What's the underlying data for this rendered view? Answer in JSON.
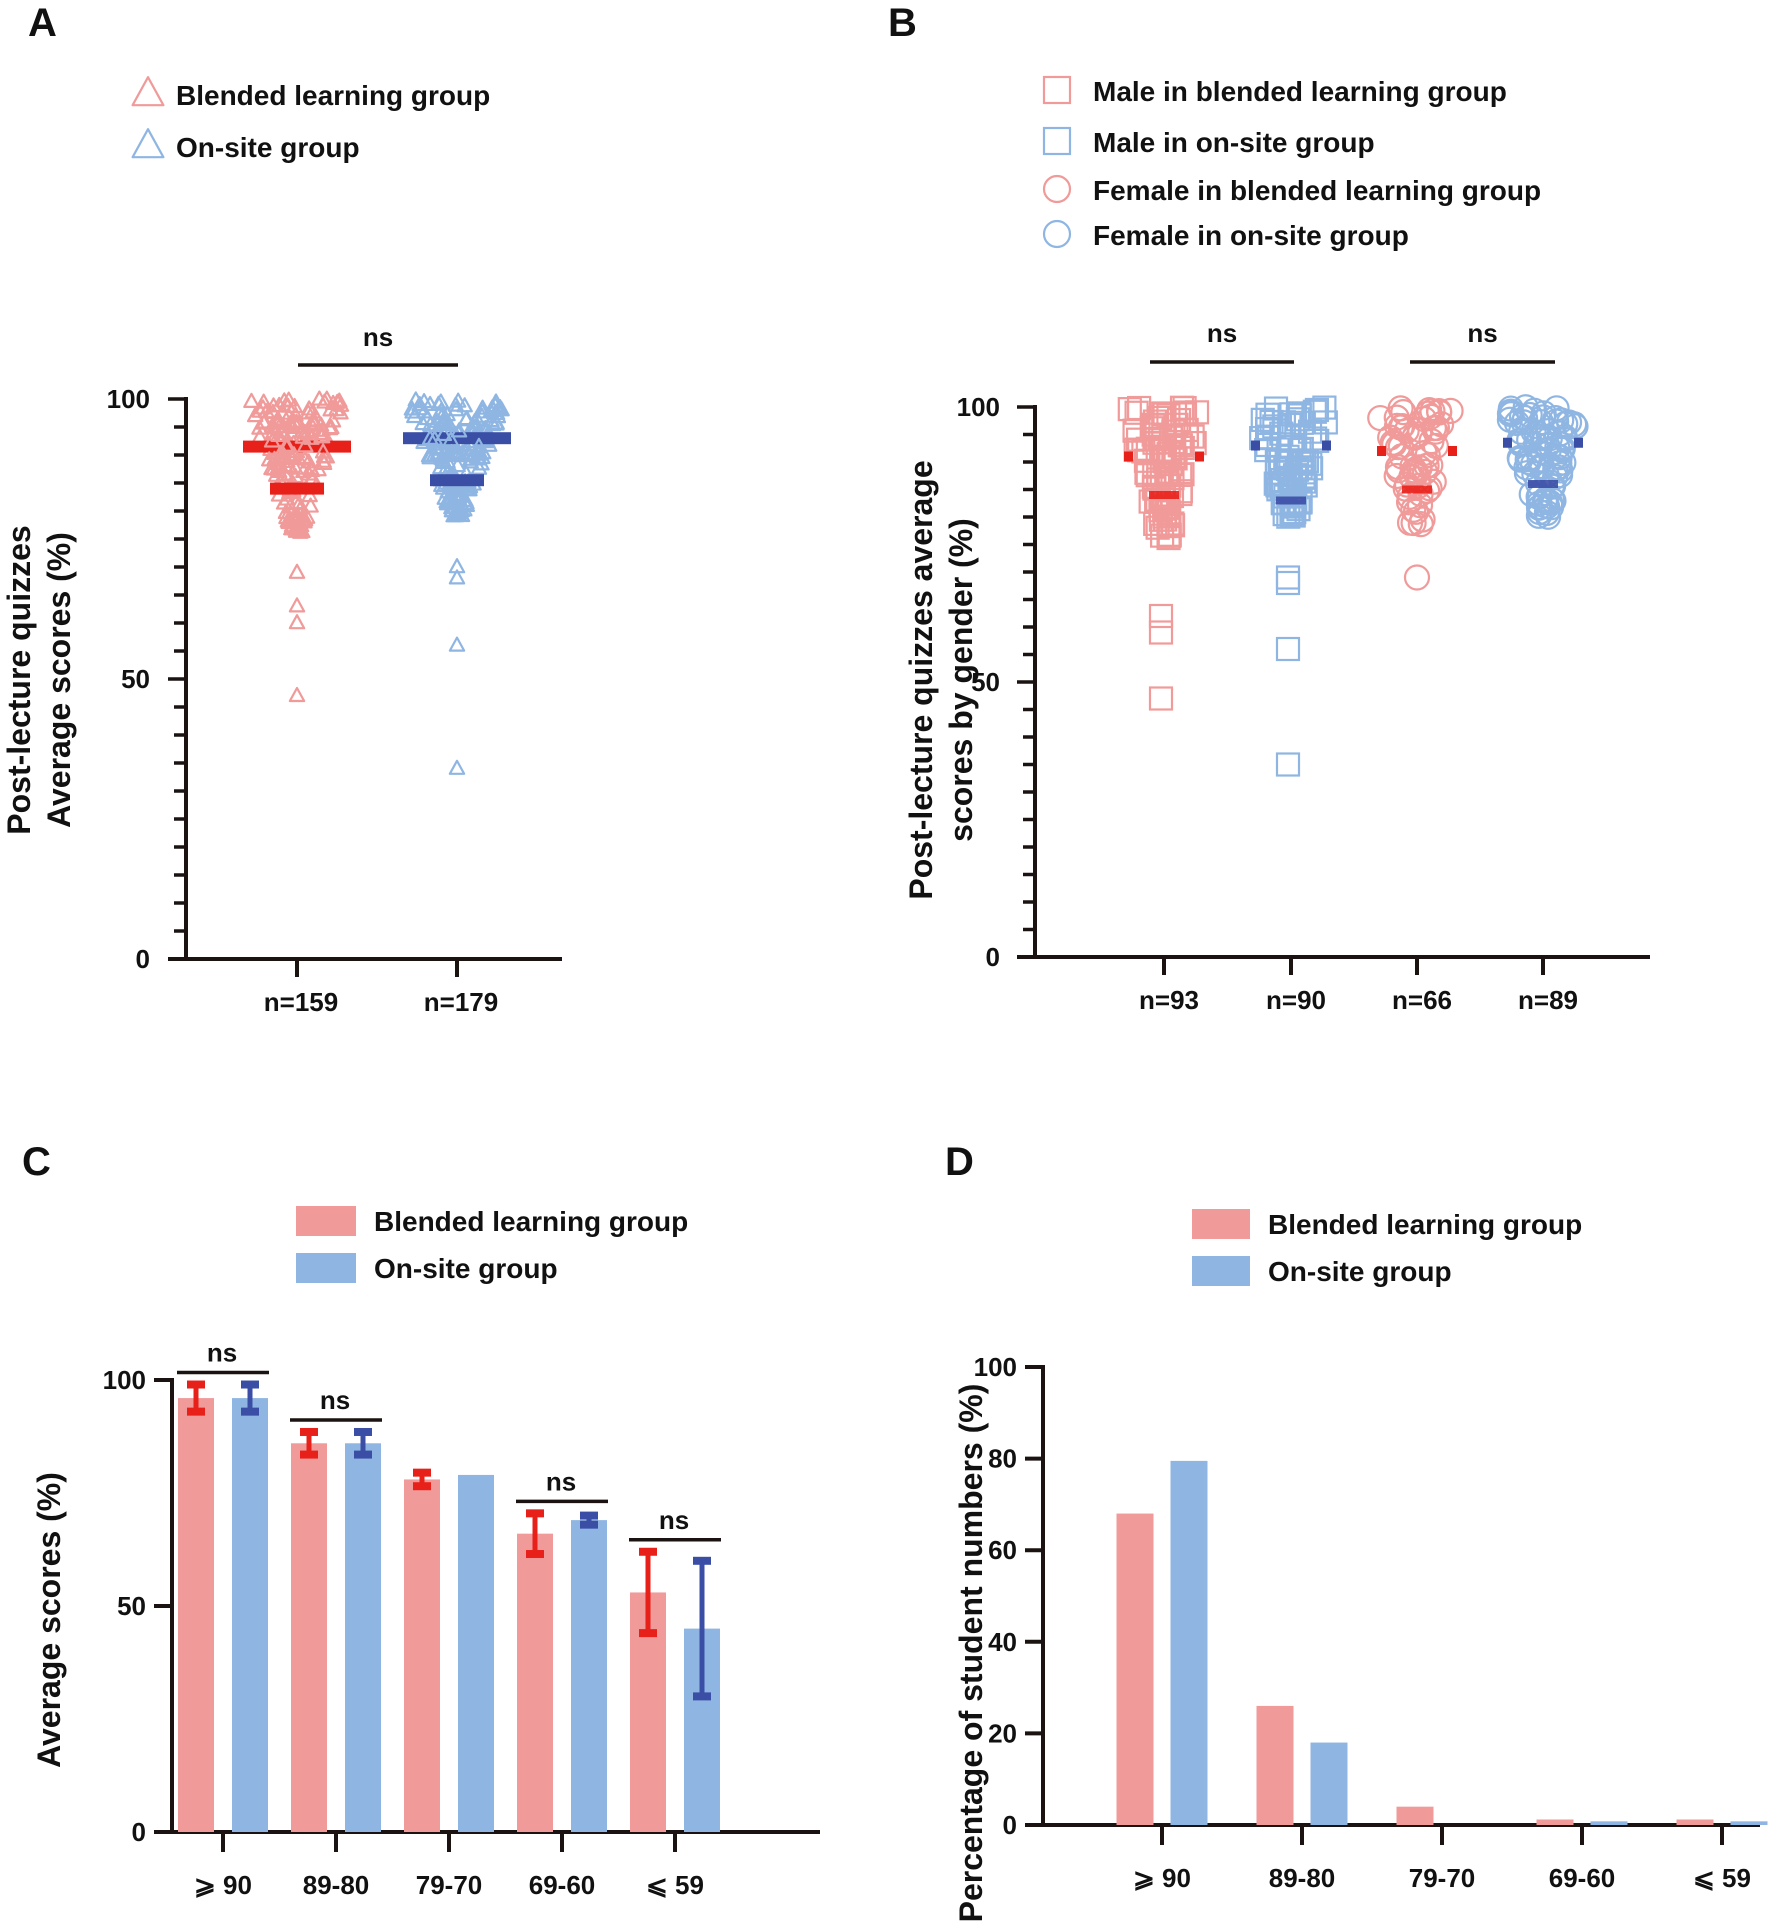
{
  "colors": {
    "blended": "#f09a9a",
    "onsite": "#8fb6e2",
    "blended_mark": "#e8201a",
    "onsite_mark": "#3b4ea6",
    "axis": "#1a1311"
  },
  "chart_data": [
    {
      "panel": "A",
      "type": "scatter",
      "title": "",
      "ylabel_lines": [
        "Post-lecture quizzes",
        "Average scores (%)"
      ],
      "xlabel": "",
      "ylim": [
        0,
        100
      ],
      "ytick_labels": [
        "0",
        "50",
        "100"
      ],
      "yticks_major": [
        0,
        50,
        100
      ],
      "yticks_minor_step": 5,
      "legend": [
        {
          "label": "Blended learning group",
          "marker": "triangle",
          "color": "blended"
        },
        {
          "label": "On-site group",
          "marker": "triangle",
          "color": "onsite"
        }
      ],
      "legend_position": "top-left",
      "categories": [
        "n=159",
        "n=179"
      ],
      "series": [
        {
          "name": "Blended learning group",
          "marker": "triangle",
          "color": "blended",
          "n": 159,
          "mean": 91.5,
          "sd_lower": 84,
          "range_main": [
            76,
            100
          ],
          "outliers": [
            69,
            63,
            60,
            47
          ]
        },
        {
          "name": "On-site group",
          "marker": "triangle",
          "color": "onsite",
          "n": 179,
          "mean": 93,
          "sd_lower": 85.5,
          "range_main": [
            79,
            100
          ],
          "outliers": [
            70,
            68,
            56,
            34
          ]
        }
      ],
      "significance": [
        {
          "between": [
            0,
            1
          ],
          "label": "ns"
        }
      ]
    },
    {
      "panel": "B",
      "type": "scatter",
      "title": "",
      "ylabel_lines": [
        "Post-lecture quizzes  average",
        "scores by gender (%)"
      ],
      "xlabel": "",
      "ylim": [
        0,
        100
      ],
      "ytick_labels": [
        "0",
        "50",
        "100"
      ],
      "yticks_major": [
        0,
        50,
        100
      ],
      "yticks_minor_step": 5,
      "legend": [
        {
          "label": "Male in blended learning group",
          "marker": "square",
          "color": "blended"
        },
        {
          "label": "Male in on-site group",
          "marker": "square",
          "color": "onsite"
        },
        {
          "label": "Female in blended learning group",
          "marker": "circle",
          "color": "blended"
        },
        {
          "label": "Female in on-site group",
          "marker": "circle",
          "color": "onsite"
        }
      ],
      "legend_position": "top-left",
      "categories": [
        "n=93",
        "n=90",
        "n=66",
        "n=89"
      ],
      "series": [
        {
          "name": "Male in blended learning group",
          "marker": "square",
          "color": "blended",
          "n": 93,
          "mean": 91,
          "sd_lower": 84,
          "range_main": [
            76,
            100
          ],
          "outliers": [
            62,
            59,
            47
          ]
        },
        {
          "name": "Male in on-site group",
          "marker": "square",
          "color": "onsite",
          "n": 90,
          "mean": 93,
          "sd_lower": 83,
          "range_main": [
            80,
            100
          ],
          "outliers": [
            69,
            68,
            56,
            35
          ]
        },
        {
          "name": "Female in blended learning group",
          "marker": "circle",
          "color": "blended",
          "n": 66,
          "mean": 92,
          "sd_lower": 85,
          "range_main": [
            78,
            100
          ],
          "outliers": [
            69
          ]
        },
        {
          "name": "Female in on-site group",
          "marker": "circle",
          "color": "onsite",
          "n": 89,
          "mean": 93.5,
          "sd_lower": 86,
          "range_main": [
            80,
            100
          ],
          "outliers": []
        }
      ],
      "significance": [
        {
          "between": [
            0,
            1
          ],
          "label": "ns"
        },
        {
          "between": [
            2,
            3
          ],
          "label": "ns"
        }
      ]
    },
    {
      "panel": "C",
      "type": "bar",
      "title": "",
      "ylabel": "Average scores (%)",
      "xlabel": "",
      "ylim": [
        0,
        100
      ],
      "ytick_labels": [
        "0",
        "50",
        "100"
      ],
      "yticks": [
        0,
        50,
        100
      ],
      "legend": [
        {
          "label": "Blended learning group",
          "color": "blended"
        },
        {
          "label": "On-site group",
          "color": "onsite"
        }
      ],
      "legend_position": "top-center",
      "categories": [
        "⩾ 90",
        "89-80",
        "79-70",
        "69-60",
        "⩽ 59"
      ],
      "series": [
        {
          "name": "Blended learning group",
          "color": "blended",
          "values": [
            96,
            86,
            78,
            66,
            53
          ],
          "errors": [
            3,
            2.5,
            1.5,
            4.5,
            9
          ]
        },
        {
          "name": "On-site group",
          "color": "onsite",
          "values": [
            96,
            86,
            79,
            69,
            45
          ],
          "errors": [
            3,
            2.5,
            0,
            1,
            15
          ]
        }
      ],
      "significance": [
        {
          "category": 0,
          "label": "ns"
        },
        {
          "category": 1,
          "label": "ns"
        },
        {
          "category": 3,
          "label": "ns"
        },
        {
          "category": 4,
          "label": "ns"
        }
      ]
    },
    {
      "panel": "D",
      "type": "bar",
      "title": "",
      "ylabel": "Percentage of student numbers (%)",
      "xlabel": "",
      "ylim": [
        0,
        100
      ],
      "ytick_labels": [
        "0",
        "20",
        "40",
        "60",
        "80",
        "100"
      ],
      "yticks": [
        0,
        20,
        40,
        60,
        80,
        100
      ],
      "legend": [
        {
          "label": "Blended learning group",
          "color": "blended"
        },
        {
          "label": "On-site group",
          "color": "onsite"
        }
      ],
      "legend_position": "top-center",
      "categories": [
        "⩾ 90",
        "89-80",
        "79-70",
        "69-60",
        "⩽ 59"
      ],
      "series": [
        {
          "name": "Blended learning group",
          "color": "blended",
          "values": [
            68,
            26,
            4,
            1.2,
            1.2
          ]
        },
        {
          "name": "On-site group",
          "color": "onsite",
          "values": [
            79.5,
            18,
            0,
            0.8,
            0.8
          ]
        }
      ]
    }
  ],
  "panel_letters": [
    "A",
    "B",
    "C",
    "D"
  ]
}
